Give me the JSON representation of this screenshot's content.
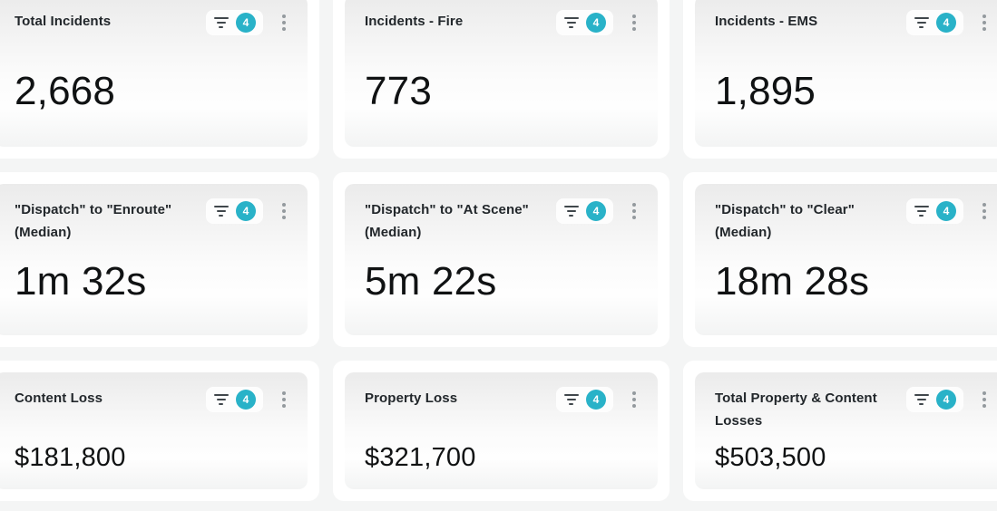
{
  "colors": {
    "page_background": "#f4f5f5",
    "card_background": "#ffffff",
    "card_header_tint": "#ebebeb",
    "badge_background": "#29b2c8",
    "badge_text": "#ffffff",
    "title_text": "#22272b",
    "value_text": "#101213",
    "icon_gray": "#949a9e"
  },
  "cards": [
    {
      "title": "Total Incidents",
      "value": "2,668",
      "filter_count": "4"
    },
    {
      "title": "Incidents - Fire",
      "value": "773",
      "filter_count": "4"
    },
    {
      "title": "Incidents - EMS",
      "value": "1,895",
      "filter_count": "4"
    },
    {
      "title": "\"Dispatch\" to \"Enroute\" (Median)",
      "value": "1m 32s",
      "filter_count": "4"
    },
    {
      "title": "\"Dispatch\" to \"At Scene\" (Median)",
      "value": "5m 22s",
      "filter_count": "4"
    },
    {
      "title": "\"Dispatch\" to \"Clear\" (Median)",
      "value": "18m 28s",
      "filter_count": "4"
    },
    {
      "title": "Content Loss",
      "value": "$181,800",
      "filter_count": "4"
    },
    {
      "title": "Property Loss",
      "value": "$321,700",
      "filter_count": "4"
    },
    {
      "title": "Total Property & Content Losses",
      "value": "$503,500",
      "filter_count": "4"
    }
  ]
}
